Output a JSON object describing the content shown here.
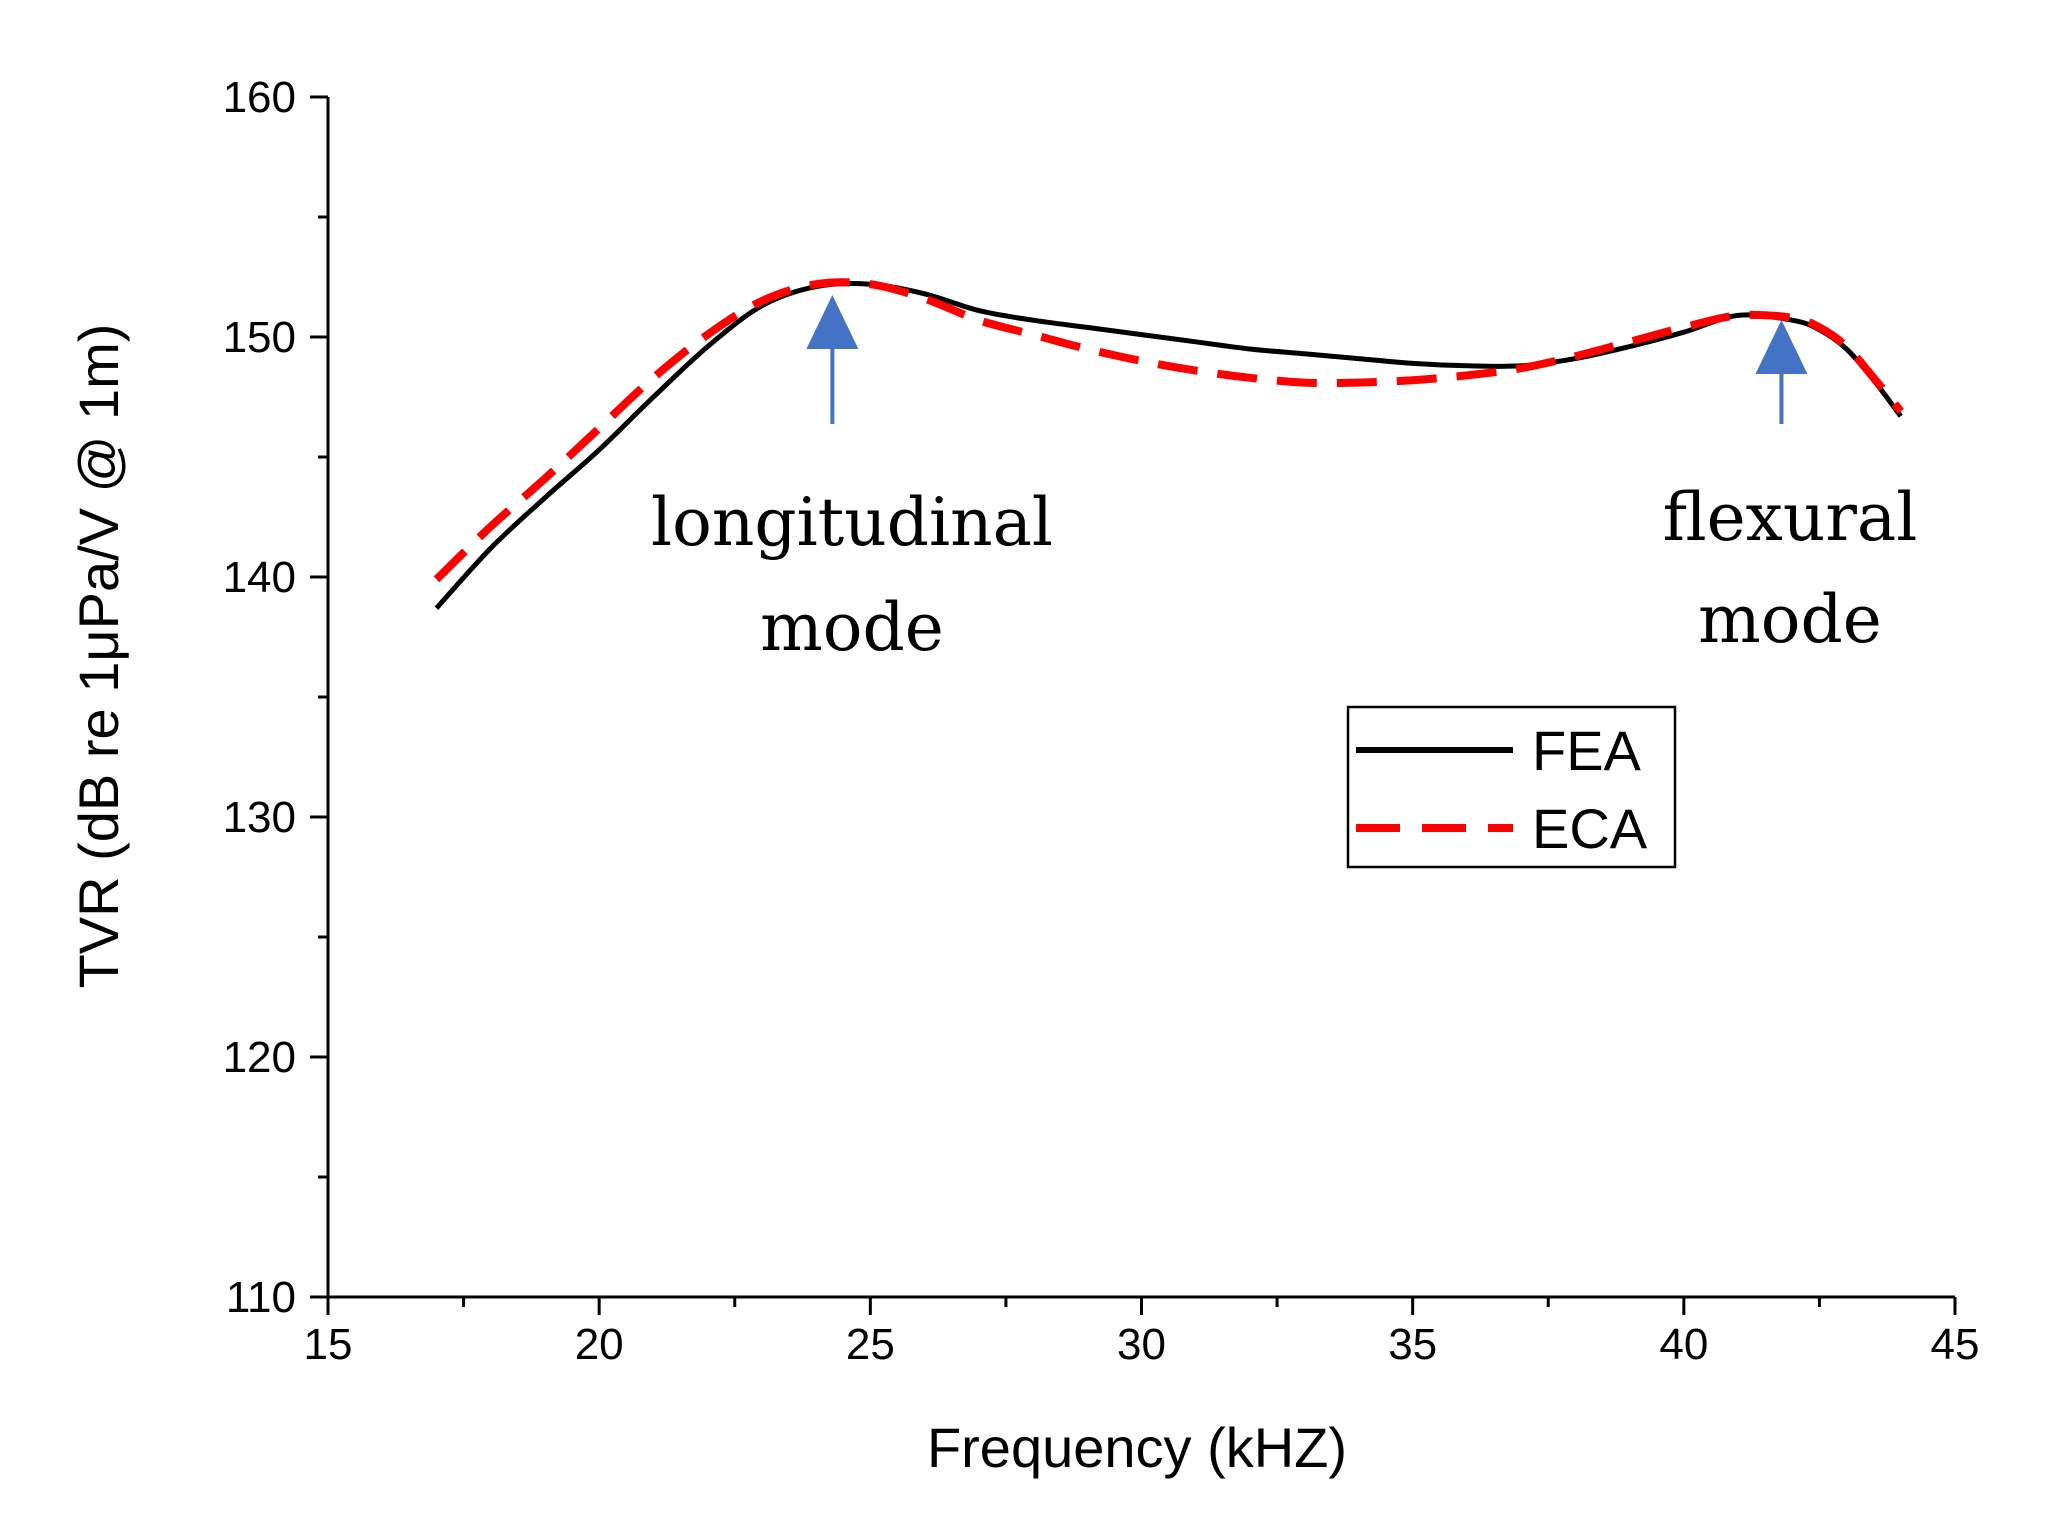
{
  "chart_data": {
    "type": "line",
    "title": "",
    "xlabel": "Frequency (kHZ)",
    "ylabel": "TVR (dB re 1μPa/V @ 1m)",
    "xlim": [
      15,
      45
    ],
    "ylim": [
      110,
      160
    ],
    "xticks": [
      15,
      20,
      25,
      30,
      35,
      40,
      45
    ],
    "yticks": [
      110,
      120,
      130,
      140,
      150,
      160
    ],
    "grid": false,
    "legend_position": "center-right",
    "series": [
      {
        "name": "FEA",
        "color": "#000000",
        "style": "solid",
        "x": [
          17,
          18,
          19,
          20,
          21,
          22,
          23,
          24,
          25,
          26,
          27,
          28,
          29,
          30,
          31,
          32,
          33,
          34,
          35,
          36,
          37,
          38,
          39,
          40,
          41,
          42,
          42.5,
          43,
          43.5,
          44
        ],
        "y": [
          138.7,
          141.2,
          143.3,
          145.3,
          147.5,
          149.6,
          151.3,
          152.1,
          152.2,
          151.8,
          151.1,
          150.7,
          150.4,
          150.1,
          149.8,
          149.5,
          149.3,
          149.1,
          148.9,
          148.8,
          148.8,
          149.1,
          149.6,
          150.2,
          150.9,
          150.7,
          150.3,
          149.5,
          148.2,
          146.7
        ]
      },
      {
        "name": "ECA",
        "color": "#ff0000",
        "style": "dashed",
        "x": [
          17,
          18,
          19,
          20,
          21,
          22,
          23,
          24,
          25,
          26,
          27,
          28,
          29,
          30,
          31,
          32,
          33,
          34,
          35,
          36,
          37,
          38,
          39,
          40,
          41,
          42,
          42.5,
          43,
          43.5,
          44
        ],
        "y": [
          139.9,
          142.1,
          144.1,
          146.2,
          148.3,
          150.1,
          151.5,
          152.2,
          152.2,
          151.6,
          150.7,
          150.1,
          149.5,
          149.0,
          148.6,
          148.3,
          148.1,
          148.1,
          148.2,
          148.4,
          148.7,
          149.2,
          149.8,
          150.4,
          150.9,
          150.8,
          150.4,
          149.6,
          148.3,
          146.9
        ]
      }
    ],
    "annotations": [
      {
        "lines": [
          "longitudinal",
          "mode"
        ],
        "arrow_at_x": 24.3
      },
      {
        "lines": [
          "flexural",
          "mode"
        ],
        "arrow_at_x": 41.8
      }
    ],
    "arrow_color": "#4472c4"
  }
}
